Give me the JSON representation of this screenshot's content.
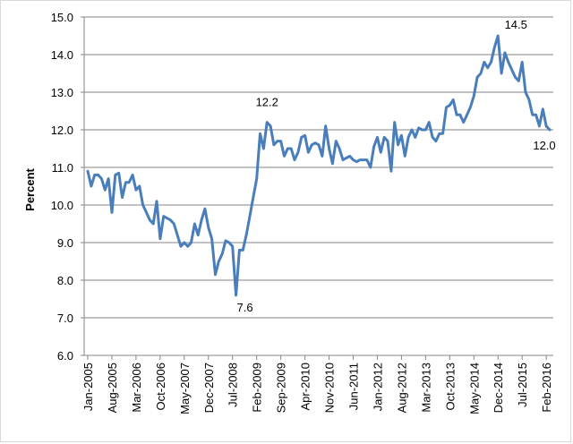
{
  "chart_data": {
    "type": "line",
    "title": "",
    "xlabel": "",
    "ylabel": "Percent",
    "ylim": [
      6.0,
      15.0
    ],
    "y_ticks": [
      "6.0",
      "7.0",
      "8.0",
      "9.0",
      "10.0",
      "11.0",
      "12.0",
      "13.0",
      "14.0",
      "15.0"
    ],
    "x_tick_labels": [
      "Jan-2005",
      "Aug-2005",
      "Mar-2006",
      "Oct-2006",
      "May-2007",
      "Dec-2007",
      "Jul-2008",
      "Feb-2009",
      "Sep-2009",
      "Apr-2010",
      "Nov-2010",
      "Jun-2011",
      "Jan-2012",
      "Aug-2012",
      "Mar-2013",
      "Oct-2013",
      "May-2014",
      "Dec-2014",
      "Jul-2015",
      "Feb-2016"
    ],
    "grid": "horizontal",
    "legend": "none",
    "series": [
      {
        "color": "#4a7ebb",
        "x_start": "Jan-2005",
        "frequency": "monthly",
        "values": [
          10.9,
          10.5,
          10.8,
          10.8,
          10.7,
          10.4,
          10.7,
          9.8,
          10.8,
          10.85,
          10.2,
          10.6,
          10.6,
          10.8,
          10.4,
          10.5,
          10.0,
          9.8,
          9.6,
          9.5,
          10.1,
          9.1,
          9.7,
          9.65,
          9.6,
          9.5,
          9.2,
          8.9,
          9.0,
          8.9,
          9.0,
          9.5,
          9.2,
          9.6,
          9.9,
          9.4,
          9.1,
          8.15,
          8.5,
          8.7,
          9.05,
          9.0,
          8.9,
          7.6,
          8.8,
          8.8,
          9.2,
          9.7,
          10.2,
          10.7,
          11.9,
          11.5,
          12.2,
          12.1,
          11.6,
          11.7,
          11.7,
          11.3,
          11.5,
          11.5,
          11.2,
          11.4,
          11.8,
          11.85,
          11.4,
          11.6,
          11.65,
          11.6,
          11.3,
          12.1,
          11.5,
          11.1,
          11.7,
          11.5,
          11.2,
          11.25,
          11.3,
          11.2,
          11.15,
          11.2,
          11.2,
          11.2,
          11.0,
          11.55,
          11.8,
          11.4,
          11.8,
          11.7,
          10.9,
          12.2,
          11.6,
          11.85,
          11.3,
          11.8,
          12.0,
          11.8,
          12.05,
          12.0,
          12.0,
          12.2,
          11.8,
          11.7,
          11.9,
          11.9,
          12.6,
          12.65,
          12.8,
          12.4,
          12.4,
          12.2,
          12.4,
          12.6,
          12.9,
          13.4,
          13.5,
          13.8,
          13.65,
          13.8,
          14.2,
          14.5,
          13.5,
          14.05,
          13.8,
          13.6,
          13.4,
          13.3,
          13.8,
          13.0,
          12.8,
          12.4,
          12.4,
          12.1,
          12.55,
          12.1,
          12.0
        ]
      }
    ],
    "annotations": [
      {
        "text": "12.2",
        "x_index": 52,
        "y": 12.2
      },
      {
        "text": "7.6",
        "x_index": 43,
        "y": 7.6
      },
      {
        "text": "14.5",
        "x_index": 119,
        "y": 14.5
      },
      {
        "text": "12.0",
        "x_index": 134,
        "y": 12.0
      }
    ]
  }
}
